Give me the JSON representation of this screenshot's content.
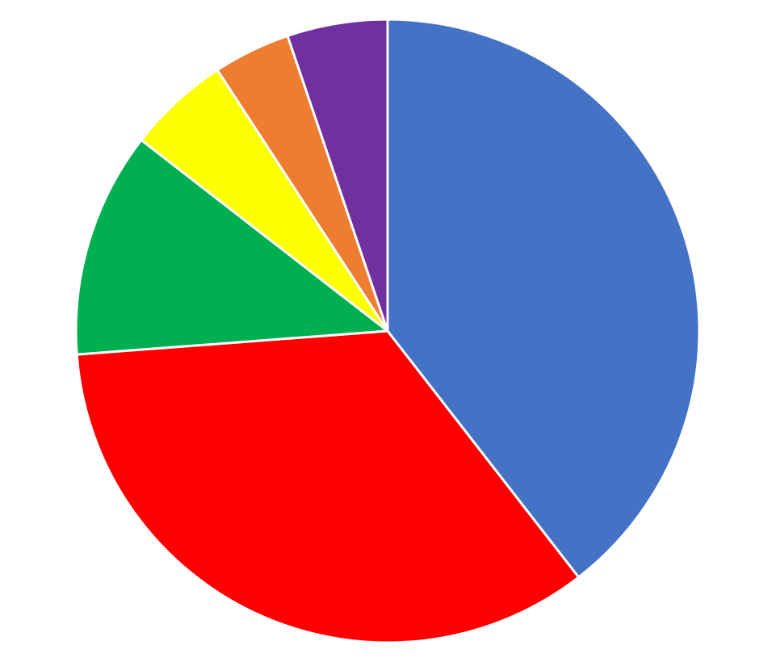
{
  "chart_data": {
    "type": "pie",
    "values": [
      39.5,
      34.3,
      11.7,
      5.3,
      4.0,
      5.2
    ],
    "colors": [
      "#4472c4",
      "#ff0000",
      "#00b050",
      "#ffff00",
      "#ed7d31",
      "#7030a0"
    ],
    "start_angle": 0,
    "direction": "clockwise"
  }
}
